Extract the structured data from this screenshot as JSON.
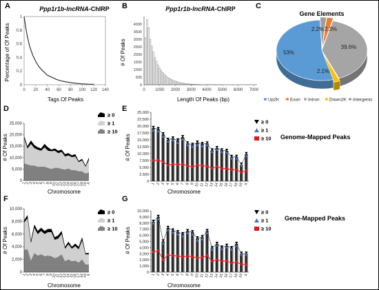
{
  "panel_letters": {
    "a": "A",
    "b": "B",
    "c": "C",
    "d": "D",
    "e": "E",
    "f": "F",
    "g": "G"
  },
  "side_labels": {
    "genome": "Genome-Mapped Peaks",
    "gene": "Gene-Mapped Peaks"
  },
  "colors": {
    "up2k": "#5B9BD5",
    "exon": "#ED7D31",
    "intron": "#A5A5A5",
    "down2k": "#FFC000",
    "intergenic": "#9E9E9E",
    "ge0": "#000000",
    "ge1": "#4472C4",
    "ge10": "#E0161B",
    "area_top": "#000000",
    "area_mid": "#D0D0D0",
    "area_bot": "#808080"
  },
  "chart_data": [
    {
      "id": "A",
      "type": "line",
      "title_italic": "Ppp1r1b-lncRNA",
      "title_suffix": "-ChIRP",
      "xlabel": "Tags Of Peaks",
      "ylabel": "Percentage of Of Peaks",
      "xlim": [
        0,
        140
      ],
      "ylim": [
        0,
        1
      ],
      "xticks": [
        "0",
        "20",
        "40",
        "60",
        "80",
        "100",
        "120",
        "140"
      ],
      "yticks": [
        "0",
        "0.2",
        "0.4",
        "0.6",
        "0.8",
        "1"
      ],
      "x": [
        0,
        2,
        4,
        6,
        8,
        10,
        15,
        20,
        25,
        30,
        35,
        40,
        45,
        50,
        55,
        60,
        65,
        70,
        80,
        90,
        100,
        110,
        120
      ],
      "y": [
        1.0,
        0.88,
        0.78,
        0.69,
        0.62,
        0.55,
        0.43,
        0.34,
        0.27,
        0.22,
        0.18,
        0.14,
        0.12,
        0.1,
        0.08,
        0.065,
        0.055,
        0.045,
        0.03,
        0.02,
        0.013,
        0.008,
        0.005
      ]
    },
    {
      "id": "B",
      "type": "bar",
      "title_italic": "Ppp1r1b-lncRNA",
      "title_suffix": "-ChIRP",
      "xlabel": "Length Of Peaks (bp)",
      "ylabel": "# Of Peaks",
      "xlim": [
        0,
        7200
      ],
      "ylim": [
        0,
        4500
      ],
      "xticks": [
        "0",
        "1000",
        "2000",
        "3000",
        "4000",
        "5000",
        "6000",
        "7000"
      ],
      "yticks": [
        "0",
        "500",
        "1000",
        "1500",
        "2000",
        "2500",
        "3000",
        "3500",
        "4000"
      ],
      "bin_start": 50,
      "bin_width": 100,
      "values": [
        3100,
        4300,
        3750,
        3000,
        2550,
        2150,
        1800,
        1550,
        1300,
        1100,
        930,
        800,
        690,
        590,
        500,
        430,
        370,
        320,
        270,
        230,
        195,
        165,
        140,
        120,
        100,
        85,
        72,
        60,
        50,
        42,
        35,
        29,
        24,
        20,
        17,
        14,
        12,
        10,
        8,
        7,
        6,
        5,
        4,
        4,
        3,
        3,
        2,
        2,
        2
      ]
    },
    {
      "id": "C",
      "type": "pie",
      "title": "Gene Elements",
      "categories": [
        "Up2K",
        "Exon",
        "Intron",
        "Down2K",
        "Intergenic"
      ],
      "values": [
        53,
        2.3,
        39.6,
        2.1,
        2.2
      ],
      "labels": [
        "53%",
        "2.3%",
        "39.6%",
        "2.1%",
        "2.2%"
      ]
    },
    {
      "id": "D",
      "type": "area",
      "xlabel": "Chromosome",
      "ylabel": "# Of Peaks",
      "ylim": [
        0,
        25000
      ],
      "yticks": [
        "0",
        "5,000",
        "10,000",
        "15,000",
        "20,000",
        "25,000"
      ],
      "categories": [
        "1",
        "2",
        "3",
        "4",
        "5",
        "6",
        "7",
        "8",
        "9",
        "10",
        "11",
        "12",
        "13",
        "14",
        "15",
        "16",
        "17",
        "18",
        "19",
        "X"
      ],
      "series": [
        {
          "name": "≥ 0",
          "values": [
            19500,
            15000,
            17500,
            15500,
            14500,
            14000,
            16000,
            14500,
            13500,
            14000,
            13000,
            13500,
            11500,
            12000,
            11000,
            11500,
            8500,
            9500,
            6500,
            10000
          ]
        },
        {
          "name": "≥ 1",
          "values": [
            18500,
            14000,
            16000,
            14200,
            13500,
            13000,
            14500,
            13000,
            12800,
            13000,
            12000,
            12500,
            10500,
            11000,
            10200,
            10500,
            8000,
            8800,
            6000,
            9000
          ]
        },
        {
          "name": "≥ 10",
          "values": [
            7500,
            7000,
            6500,
            6500,
            6000,
            6000,
            6000,
            5500,
            5000,
            5500,
            5500,
            5000,
            4800,
            5200,
            4500,
            4500,
            4000,
            4000,
            3000,
            3500
          ]
        }
      ]
    },
    {
      "id": "E",
      "type": "bar_line",
      "xlabel": "Chromosome",
      "ylabel": "# Of Peaks",
      "ylim": [
        0,
        25000
      ],
      "yticks": [
        "0",
        "2,500",
        "5,000",
        "7,500",
        "10,000",
        "12,500",
        "15,000",
        "17,500",
        "20,000",
        "22,500",
        "25,000"
      ],
      "categories": [
        "1",
        "2",
        "3",
        "4",
        "5",
        "6",
        "7",
        "8",
        "9",
        "10",
        "11",
        "12",
        "13",
        "14",
        "15",
        "16",
        "17",
        "18",
        "19",
        "X"
      ],
      "series": [
        {
          "name": "≥ 0",
          "values": [
            19300,
            18900,
            17000,
            15000,
            15500,
            14800,
            16000,
            13700,
            13200,
            14000,
            13500,
            13700,
            11200,
            12000,
            11200,
            11000,
            8800,
            8800,
            6000,
            9800
          ]
        },
        {
          "name": "≥ 1",
          "values": [
            18500,
            18200,
            16300,
            14500,
            15000,
            14000,
            15300,
            13200,
            12600,
            13200,
            12800,
            13200,
            10700,
            11500,
            10700,
            10500,
            8300,
            8300,
            5800,
            9200
          ]
        },
        {
          "name": "≥ 10",
          "values": [
            7500,
            7600,
            7000,
            5800,
            6200,
            6000,
            6200,
            5500,
            5200,
            5800,
            5600,
            5400,
            4700,
            5300,
            4600,
            4500,
            4200,
            4100,
            3200,
            3800
          ]
        }
      ]
    },
    {
      "id": "F",
      "type": "area",
      "xlabel": "Chromosome",
      "ylabel": "# Of Peaks",
      "ylim": [
        0,
        10000
      ],
      "yticks": [
        "0",
        "2,000",
        "4,000",
        "6,000",
        "8,000",
        "10,000"
      ],
      "categories": [
        "1",
        "2",
        "3",
        "4",
        "5",
        "6",
        "7",
        "8",
        "9",
        "10",
        "11",
        "12",
        "13",
        "14",
        "15",
        "16",
        "17",
        "18",
        "19",
        "X"
      ],
      "series": [
        {
          "name": "≥ 0",
          "values": [
            8200,
            9000,
            5000,
            7500,
            6500,
            7000,
            6500,
            6800,
            6800,
            5500,
            5800,
            6500,
            4000,
            4800,
            4000,
            4500,
            4000,
            5500,
            3000,
            3000
          ]
        },
        {
          "name": "≥ 1",
          "values": [
            7800,
            8500,
            4600,
            7000,
            6000,
            6500,
            6000,
            6300,
            6300,
            5100,
            5300,
            6000,
            3700,
            4400,
            3700,
            4100,
            3600,
            5000,
            2800,
            2800
          ]
        },
        {
          "name": "≥ 10",
          "values": [
            3500,
            3600,
            1800,
            3000,
            2600,
            2800,
            2500,
            2600,
            2500,
            2200,
            2400,
            2800,
            1700,
            2000,
            1700,
            1800,
            1500,
            2000,
            1200,
            1200
          ]
        }
      ]
    },
    {
      "id": "G",
      "type": "bar_line",
      "xlabel": "Chromosome",
      "ylabel": "# Of Peaks",
      "ylim": [
        0,
        10000
      ],
      "yticks": [
        "0",
        "1,000",
        "2,000",
        "3,000",
        "4,000",
        "5,000",
        "6,000",
        "7,000",
        "8,000",
        "9,000",
        "10,000"
      ],
      "categories": [
        "1",
        "2",
        "3",
        "4",
        "5",
        "6",
        "7",
        "8",
        "9",
        "10",
        "11",
        "12",
        "13",
        "14",
        "15",
        "16",
        "17",
        "18",
        "19",
        "X"
      ],
      "series": [
        {
          "name": "≥ 0",
          "values": [
            8200,
            9000,
            5000,
            7200,
            6800,
            6500,
            6200,
            6700,
            6500,
            5500,
            5700,
            6700,
            3900,
            4600,
            4000,
            4300,
            3900,
            4600,
            3000,
            3000
          ]
        },
        {
          "name": "≥ 1",
          "values": [
            8000,
            8700,
            4700,
            6900,
            6500,
            6200,
            5900,
            6400,
            6200,
            5200,
            5400,
            6400,
            3700,
            4400,
            3800,
            4100,
            3700,
            4300,
            2900,
            2900
          ]
        },
        {
          "name": "≥ 10",
          "values": [
            3300,
            3500,
            2000,
            2800,
            2700,
            2600,
            2500,
            2600,
            2500,
            2300,
            2400,
            2700,
            1800,
            2000,
            1800,
            1800,
            1500,
            1600,
            1300,
            1200
          ]
        }
      ]
    }
  ]
}
